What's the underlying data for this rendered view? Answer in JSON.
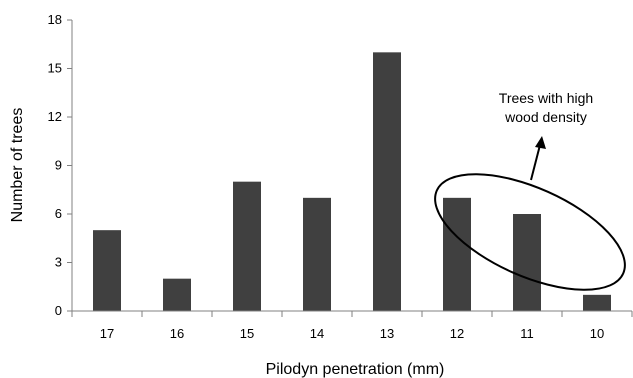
{
  "chart_data": {
    "type": "bar",
    "categories": [
      "17",
      "16",
      "15",
      "14",
      "13",
      "12",
      "11",
      "10"
    ],
    "values": [
      5,
      2,
      8,
      7,
      16,
      7,
      6,
      1
    ],
    "xlabel": "Pilodyn penetration (mm)",
    "ylabel": "Number of trees",
    "ylim": [
      0,
      18
    ],
    "yticks": [
      "0",
      "3",
      "6",
      "9",
      "12",
      "15",
      "18"
    ],
    "grid": false,
    "bar_color": "#404040",
    "annotation": {
      "text_lines": [
        "Trees with high",
        "wood density"
      ],
      "marker": "ellipse-with-arrow",
      "encircled_categories": [
        "12",
        "11"
      ]
    }
  }
}
